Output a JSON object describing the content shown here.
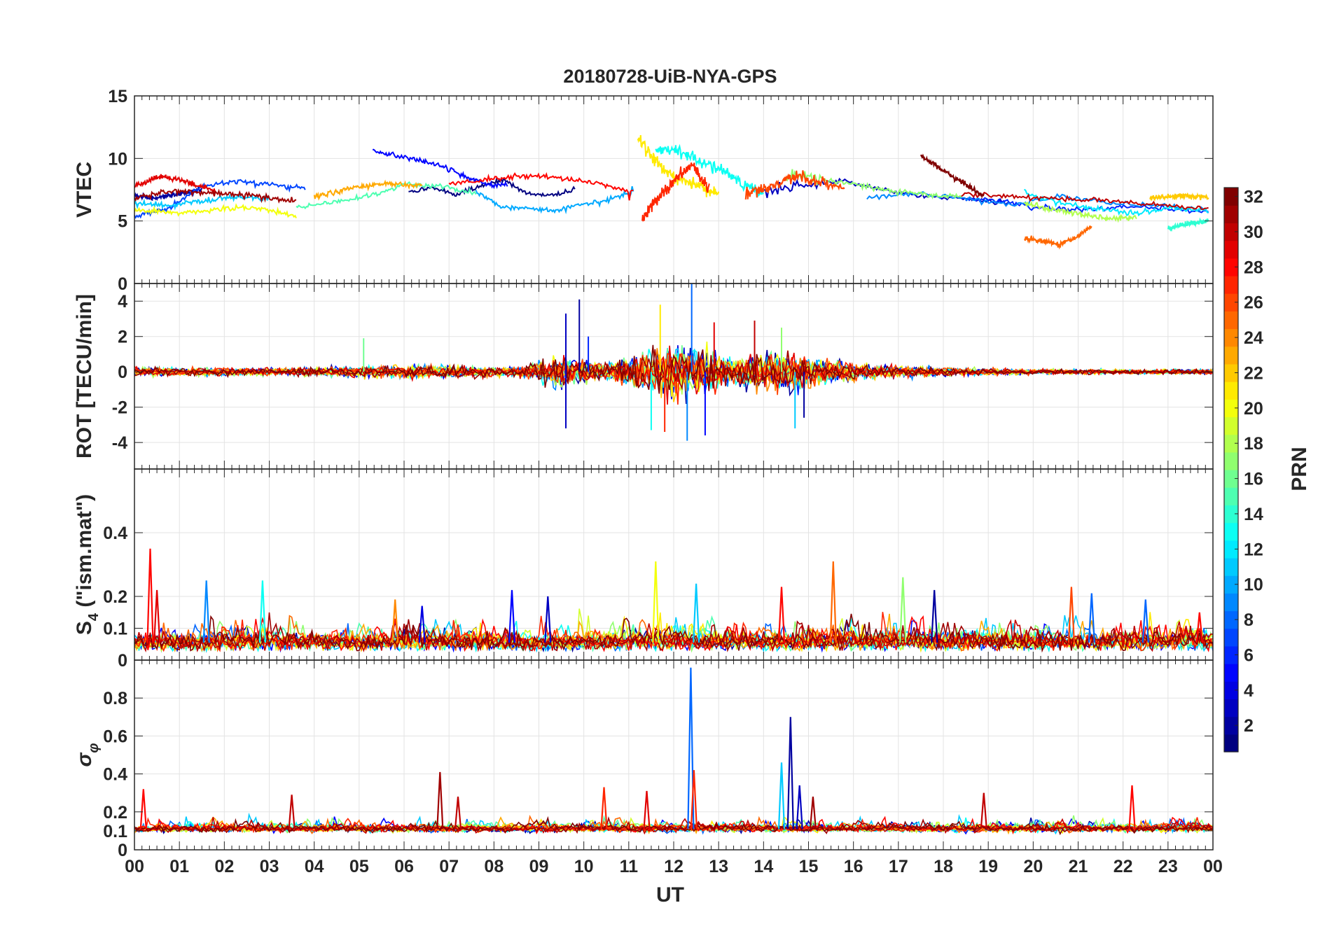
{
  "chart_data": {
    "type": "line",
    "title": "20180728-UiB-NYA-GPS",
    "xlabel": "UT",
    "x_range": [
      0,
      24
    ],
    "x_tick_labels": [
      "00",
      "01",
      "02",
      "03",
      "04",
      "05",
      "06",
      "07",
      "08",
      "09",
      "10",
      "11",
      "12",
      "13",
      "14",
      "15",
      "16",
      "17",
      "18",
      "19",
      "20",
      "21",
      "22",
      "23",
      "00"
    ],
    "grid": true,
    "color_map": "jet",
    "colorbar": {
      "label": "PRN",
      "range": [
        1,
        32
      ],
      "ticks": [
        2,
        4,
        6,
        8,
        10,
        12,
        14,
        16,
        18,
        20,
        22,
        24,
        26,
        28,
        30,
        32
      ],
      "placement": "right"
    },
    "panels": [
      {
        "id": "vtec",
        "ylabel": "VTEC",
        "ylim": [
          0,
          15
        ],
        "yticks": [
          0,
          5,
          10,
          15
        ],
        "baseline": 7.0,
        "series": [
          {
            "prn": 1,
            "x_start": 6.1,
            "x_end": 9.8,
            "values": [
              7.4,
              7.6,
              7.1,
              7.8,
              8.3,
              7.2,
              7.0,
              7.5
            ]
          },
          {
            "prn": 2,
            "x_start": 0.0,
            "x_end": 1.5,
            "values": [
              7.0,
              6.8,
              7.2,
              7.5
            ]
          },
          {
            "prn": 3,
            "x_start": 14.0,
            "x_end": 19.5,
            "values": [
              7.4,
              7.9,
              8.2,
              7.4,
              7.0,
              6.8,
              6.4
            ]
          },
          {
            "prn": 5,
            "x_start": 5.3,
            "x_end": 8.3,
            "values": [
              10.7,
              10.2,
              9.9,
              9.5,
              8.6,
              8.0,
              7.8
            ]
          },
          {
            "prn": 6,
            "x_start": 18.5,
            "x_end": 23.9,
            "values": [
              6.8,
              6.6,
              6.1,
              5.9,
              6.0,
              6.2,
              5.9,
              5.7
            ]
          },
          {
            "prn": 7,
            "x_start": 0.0,
            "x_end": 3.8,
            "values": [
              5.4,
              6.0,
              7.8,
              8.2,
              7.9,
              7.6
            ]
          },
          {
            "prn": 9,
            "x_start": 16.3,
            "x_end": 23.9,
            "values": [
              6.9,
              7.2,
              6.8,
              6.3,
              7.0,
              6.4,
              6.2,
              5.8
            ]
          },
          {
            "prn": 10,
            "x_start": 7.6,
            "x_end": 11.1,
            "values": [
              7.3,
              6.1,
              6.0,
              5.8,
              6.3,
              6.6,
              7.4
            ]
          },
          {
            "prn": 11,
            "x_start": 0.0,
            "x_end": 3.0,
            "values": [
              6.4,
              6.2,
              6.6,
              6.9,
              6.8
            ]
          },
          {
            "prn": 12,
            "x_start": 19.8,
            "x_end": 23.9,
            "values": [
              7.3,
              6.4,
              6.0,
              5.6,
              6.0,
              5.8
            ]
          },
          {
            "prn": 13,
            "x_start": 11.6,
            "x_end": 14.0,
            "values": [
              10.8,
              10.5,
              9.9,
              9.1,
              8.0,
              7.1
            ]
          },
          {
            "prn": 14,
            "x_start": 23.0,
            "x_end": 23.9,
            "values": [
              4.4,
              4.8,
              5.0
            ]
          },
          {
            "prn": 15,
            "x_start": 3.6,
            "x_end": 7.6,
            "values": [
              6.1,
              6.5,
              7.0,
              7.9,
              7.8,
              7.2
            ]
          },
          {
            "prn": 17,
            "x_start": 14.5,
            "x_end": 18.4,
            "values": [
              8.6,
              8.3,
              7.9,
              7.4,
              7.1,
              6.9
            ]
          },
          {
            "prn": 18,
            "x_start": 19.8,
            "x_end": 22.3,
            "values": [
              6.4,
              5.9,
              5.5,
              5.2,
              5.3
            ]
          },
          {
            "prn": 20,
            "x_start": 0.0,
            "x_end": 3.6,
            "values": [
              5.9,
              5.6,
              5.9,
              6.1,
              5.4
            ]
          },
          {
            "prn": 21,
            "x_start": 11.2,
            "x_end": 13.0,
            "values": [
              11.6,
              9.5,
              8.4,
              7.8,
              7.2
            ]
          },
          {
            "prn": 22,
            "x_start": 22.6,
            "x_end": 23.9,
            "values": [
              6.8,
              7.0,
              6.9
            ]
          },
          {
            "prn": 23,
            "x_start": 4.0,
            "x_end": 6.4,
            "values": [
              6.9,
              7.6,
              8.0,
              7.8
            ]
          },
          {
            "prn": 25,
            "x_start": 19.8,
            "x_end": 21.3,
            "values": [
              3.6,
              3.4,
              3.1,
              3.6,
              4.6
            ]
          },
          {
            "prn": 26,
            "x_start": 13.6,
            "x_end": 15.8,
            "values": [
              7.1,
              7.8,
              8.6,
              8.0,
              7.7
            ]
          },
          {
            "prn": 27,
            "x_start": 11.3,
            "x_end": 12.8,
            "values": [
              5.1,
              6.9,
              8.4,
              9.5,
              7.4
            ]
          },
          {
            "prn": 28,
            "x_start": 7.0,
            "x_end": 11.1,
            "values": [
              8.0,
              8.3,
              8.6,
              8.4,
              8.1,
              7.3
            ]
          },
          {
            "prn": 29,
            "x_start": 0.0,
            "x_end": 1.8,
            "values": [
              7.8,
              8.6,
              8.1,
              7.4
            ]
          },
          {
            "prn": 30,
            "x_start": 18.4,
            "x_end": 23.9,
            "values": [
              7.1,
              7.0,
              6.8,
              6.7,
              6.5,
              6.2,
              6.0
            ]
          },
          {
            "prn": 31,
            "x_start": 0.0,
            "x_end": 3.6,
            "values": [
              6.9,
              7.4,
              7.2,
              7.0,
              6.6
            ]
          },
          {
            "prn": 32,
            "x_start": 17.5,
            "x_end": 18.9,
            "values": [
              10.2,
              9.4,
              8.6,
              7.8,
              7.0
            ]
          }
        ]
      },
      {
        "id": "rot",
        "ylabel": "ROT [TECU/min]",
        "ylim": [
          -5.5,
          5
        ],
        "yticks": [
          -4,
          -2,
          0,
          2,
          4
        ],
        "baseline": 0,
        "activity_profile": [
          [
            0,
            0.35
          ],
          [
            3.5,
            0.3
          ],
          [
            5,
            0.5
          ],
          [
            6.5,
            0.55
          ],
          [
            8.5,
            0.4
          ],
          [
            9.5,
            1.3
          ],
          [
            10.5,
            0.7
          ],
          [
            11.2,
            1.4
          ],
          [
            12.0,
            2.4
          ],
          [
            12.6,
            1.9
          ],
          [
            13.3,
            1.2
          ],
          [
            14.0,
            1.6
          ],
          [
            14.8,
            1.6
          ],
          [
            15.5,
            0.9
          ],
          [
            16.5,
            0.55
          ],
          [
            18.0,
            0.35
          ],
          [
            20,
            0.2
          ],
          [
            24,
            0.2
          ]
        ],
        "spikes": [
          {
            "x": 9.6,
            "y": 3.3,
            "prn": 3
          },
          {
            "x": 9.6,
            "y": -3.2,
            "prn": 3
          },
          {
            "x": 9.9,
            "y": 4.1,
            "prn": 2
          },
          {
            "x": 10.1,
            "y": 2.0,
            "prn": 6
          },
          {
            "x": 11.5,
            "y": -3.3,
            "prn": 13
          },
          {
            "x": 11.7,
            "y": 3.8,
            "prn": 21
          },
          {
            "x": 11.8,
            "y": -3.4,
            "prn": 27
          },
          {
            "x": 12.4,
            "y": 5.0,
            "prn": 8
          },
          {
            "x": 12.3,
            "y": -3.9,
            "prn": 9
          },
          {
            "x": 12.7,
            "y": -3.6,
            "prn": 5
          },
          {
            "x": 12.9,
            "y": 2.8,
            "prn": 29
          },
          {
            "x": 13.8,
            "y": 2.9,
            "prn": 30
          },
          {
            "x": 14.4,
            "y": 2.5,
            "prn": 17
          },
          {
            "x": 14.7,
            "y": -3.2,
            "prn": 11
          },
          {
            "x": 14.9,
            "y": -2.6,
            "prn": 2
          },
          {
            "x": 5.1,
            "y": 1.9,
            "prn": 16
          }
        ]
      },
      {
        "id": "s4",
        "ylabel": "S4 (\"ism.mat\")",
        "ylabel_main": "S",
        "ylabel_sub": "4",
        "ylabel_rest": " (\"ism.mat\")",
        "ylim": [
          0,
          0.6
        ],
        "yticks": [
          0,
          0.1,
          0.2,
          0.4
        ],
        "baseline": 0.055,
        "peaks": [
          {
            "x": 0.35,
            "y": 0.35,
            "prn": 28
          },
          {
            "x": 0.5,
            "y": 0.22,
            "prn": 29
          },
          {
            "x": 1.6,
            "y": 0.25,
            "prn": 9
          },
          {
            "x": 2.85,
            "y": 0.25,
            "prn": 13
          },
          {
            "x": 5.8,
            "y": 0.19,
            "prn": 24
          },
          {
            "x": 6.4,
            "y": 0.17,
            "prn": 4
          },
          {
            "x": 8.4,
            "y": 0.22,
            "prn": 5
          },
          {
            "x": 9.2,
            "y": 0.2,
            "prn": 3
          },
          {
            "x": 11.6,
            "y": 0.31,
            "prn": 20
          },
          {
            "x": 12.5,
            "y": 0.24,
            "prn": 11
          },
          {
            "x": 14.4,
            "y": 0.23,
            "prn": 28
          },
          {
            "x": 15.55,
            "y": 0.31,
            "prn": 25
          },
          {
            "x": 17.1,
            "y": 0.26,
            "prn": 17
          },
          {
            "x": 17.8,
            "y": 0.22,
            "prn": 2
          },
          {
            "x": 20.85,
            "y": 0.23,
            "prn": 26
          },
          {
            "x": 21.3,
            "y": 0.21,
            "prn": 8
          },
          {
            "x": 22.5,
            "y": 0.19,
            "prn": 8
          },
          {
            "x": 23.7,
            "y": 0.15,
            "prn": 28
          }
        ]
      },
      {
        "id": "sigma_phi",
        "ylabel": "σ_φ",
        "ylabel_main": "σ",
        "ylabel_sub": "φ",
        "ylim": [
          0,
          1
        ],
        "yticks": [
          0,
          0.1,
          0.2,
          0.4,
          0.6,
          0.8
        ],
        "baseline": 0.11,
        "peaks": [
          {
            "x": 0.2,
            "y": 0.32,
            "prn": 28
          },
          {
            "x": 3.5,
            "y": 0.29,
            "prn": 30
          },
          {
            "x": 6.8,
            "y": 0.41,
            "prn": 31
          },
          {
            "x": 7.2,
            "y": 0.28,
            "prn": 30
          },
          {
            "x": 10.45,
            "y": 0.33,
            "prn": 27
          },
          {
            "x": 11.4,
            "y": 0.31,
            "prn": 29
          },
          {
            "x": 12.38,
            "y": 0.96,
            "prn": 8
          },
          {
            "x": 12.45,
            "y": 0.42,
            "prn": 27
          },
          {
            "x": 14.4,
            "y": 0.46,
            "prn": 11
          },
          {
            "x": 14.6,
            "y": 0.7,
            "prn": 2
          },
          {
            "x": 14.8,
            "y": 0.34,
            "prn": 3
          },
          {
            "x": 15.1,
            "y": 0.28,
            "prn": 31
          },
          {
            "x": 18.9,
            "y": 0.3,
            "prn": 30
          },
          {
            "x": 22.2,
            "y": 0.34,
            "prn": 28
          }
        ]
      }
    ]
  }
}
